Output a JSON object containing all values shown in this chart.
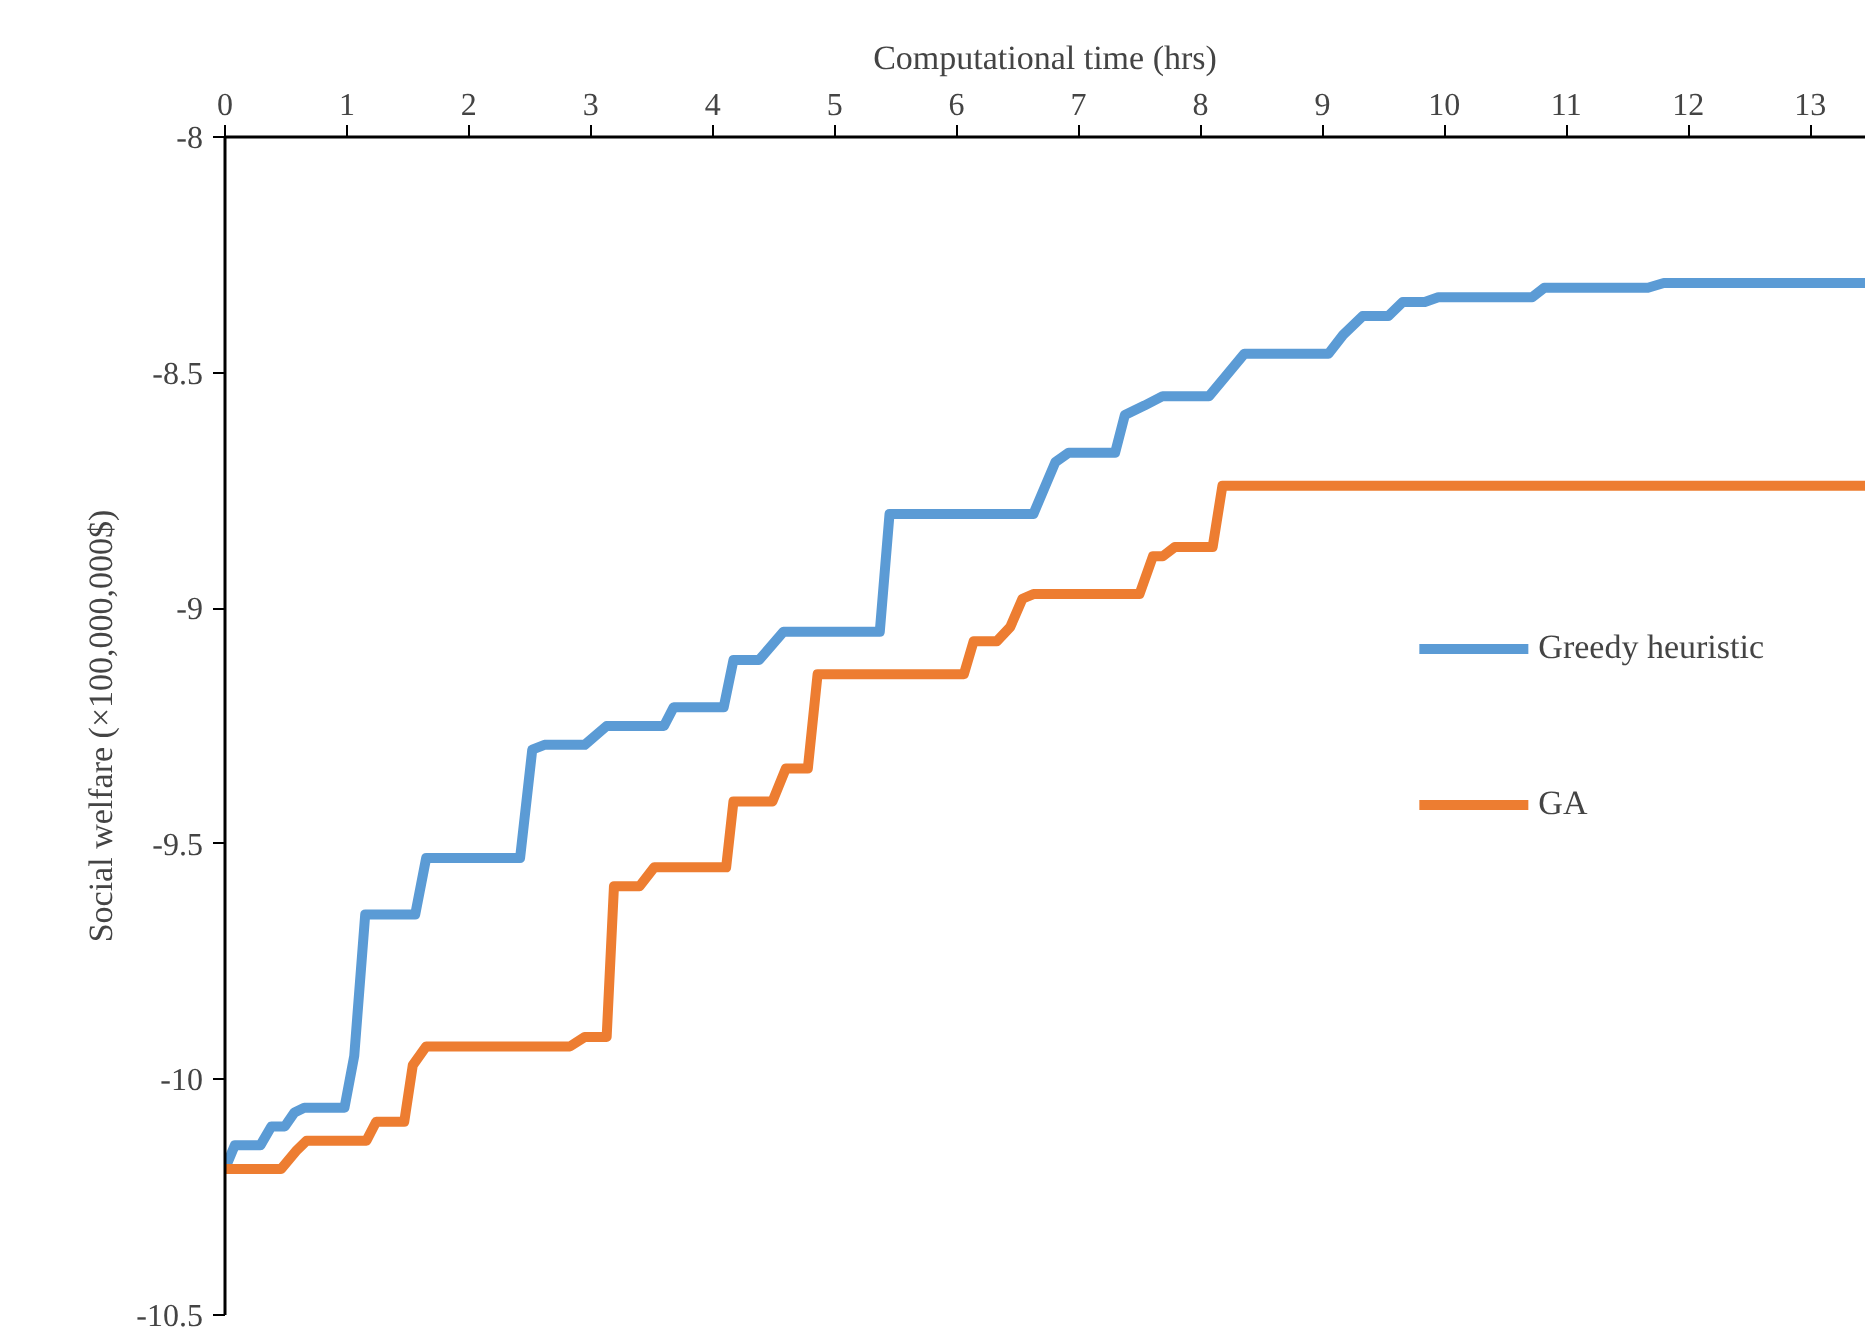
{
  "chart_data": {
    "type": "line",
    "xlabel": "Computational time (hrs)",
    "ylabel": "Social welfare (×100,000,000$)",
    "xlim": [
      0,
      13.45
    ],
    "xticks": [
      0,
      1,
      2,
      3,
      4,
      5,
      6,
      7,
      8,
      9,
      10,
      11,
      12,
      13
    ],
    "ylim": [
      -10.5,
      -8
    ],
    "yticks": [
      -10.5,
      -10,
      -9.5,
      -9,
      -8.5,
      -8
    ],
    "grid": false,
    "legend": "right",
    "line_style": "solid",
    "marker": "none",
    "series": [
      {
        "name": "Greedy heuristic",
        "color": "#5b9bd5",
        "x": [
          0,
          0.08,
          0.29,
          0.38,
          0.49,
          0.57,
          0.65,
          0.98,
          1.06,
          1.15,
          1.56,
          1.65,
          2.42,
          2.52,
          2.62,
          2.95,
          3.13,
          3.6,
          3.68,
          4.09,
          4.17,
          4.38,
          4.58,
          5.37,
          5.45,
          6.63,
          6.81,
          6.92,
          7.3,
          7.38,
          7.54,
          7.69,
          8.07,
          8.2,
          8.36,
          9.05,
          9.17,
          9.33,
          9.54,
          9.66,
          9.84,
          9.95,
          10.72,
          10.82,
          11.67,
          11.8,
          13.45
        ],
        "values": [
          -10.19,
          -10.14,
          -10.14,
          -10.1,
          -10.1,
          -10.07,
          -10.06,
          -10.06,
          -9.95,
          -9.65,
          -9.65,
          -9.53,
          -9.53,
          -9.3,
          -9.29,
          -9.29,
          -9.25,
          -9.25,
          -9.21,
          -9.21,
          -9.11,
          -9.11,
          -9.05,
          -9.05,
          -8.8,
          -8.8,
          -8.69,
          -8.67,
          -8.67,
          -8.59,
          -8.57,
          -8.55,
          -8.55,
          -8.51,
          -8.46,
          -8.46,
          -8.42,
          -8.38,
          -8.38,
          -8.35,
          -8.35,
          -8.34,
          -8.34,
          -8.32,
          -8.32,
          -8.31,
          -8.31
        ]
      },
      {
        "name": "GA",
        "color": "#ed7d31",
        "x": [
          0,
          0.46,
          0.59,
          0.67,
          1.16,
          1.24,
          1.47,
          1.54,
          1.65,
          2.83,
          2.95,
          3.13,
          3.19,
          3.4,
          3.52,
          4.11,
          4.17,
          4.49,
          4.6,
          4.78,
          4.86,
          6.06,
          6.14,
          6.33,
          6.44,
          6.54,
          6.63,
          7.5,
          7.61,
          7.69,
          7.79,
          8.1,
          8.18,
          13.45
        ],
        "values": [
          -10.19,
          -10.19,
          -10.15,
          -10.13,
          -10.13,
          -10.09,
          -10.09,
          -9.97,
          -9.93,
          -9.93,
          -9.91,
          -9.91,
          -9.59,
          -9.59,
          -9.55,
          -9.55,
          -9.41,
          -9.41,
          -9.34,
          -9.34,
          -9.14,
          -9.14,
          -9.07,
          -9.07,
          -9.04,
          -8.98,
          -8.97,
          -8.97,
          -8.89,
          -8.89,
          -8.87,
          -8.87,
          -8.74,
          -8.74
        ]
      }
    ]
  }
}
